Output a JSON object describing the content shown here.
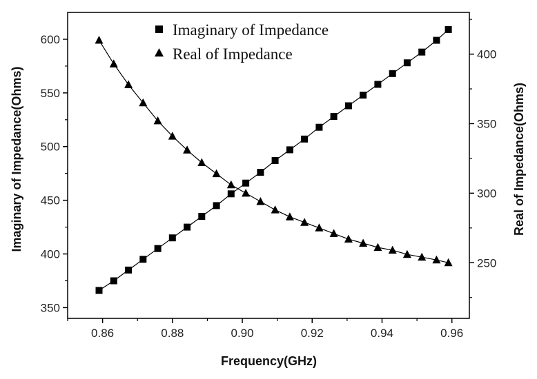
{
  "chart_data": {
    "type": "line",
    "title": "",
    "xlabel": "Frequency(GHz)",
    "ylabel_left": "Imaginary of Impedance(Ohms)",
    "ylabel_right": "Real of Impedance(Ohms)",
    "xlim": [
      0.85,
      0.965
    ],
    "ylim_left": [
      340,
      625
    ],
    "ylim_right": [
      210,
      430
    ],
    "xticks": [
      0.86,
      0.88,
      0.9,
      0.92,
      0.94,
      0.96
    ],
    "xtick_labels": [
      "0.86",
      "0.88",
      "0.90",
      "0.92",
      "0.94",
      "0.96"
    ],
    "yticks_left": [
      350,
      400,
      450,
      500,
      550,
      600
    ],
    "yticks_left_labels": [
      "350",
      "400",
      "450",
      "500",
      "550",
      "600"
    ],
    "yticks_right": [
      250,
      300,
      350,
      400
    ],
    "yticks_right_labels": [
      "250",
      "300",
      "350",
      "400"
    ],
    "grid": false,
    "legend_position": "top-center",
    "x": [
      0.859,
      0.8632,
      0.8674,
      0.8716,
      0.8758,
      0.88,
      0.8842,
      0.8884,
      0.8926,
      0.8968,
      0.901,
      0.9052,
      0.9094,
      0.9136,
      0.9178,
      0.922,
      0.9262,
      0.9304,
      0.9346,
      0.9388,
      0.943,
      0.9472,
      0.9514,
      0.9556,
      0.959
    ],
    "series": [
      {
        "name": "Imaginary of Impedance",
        "axis": "left",
        "marker": "square",
        "color": "#000000",
        "values": [
          366,
          375,
          385,
          395,
          405,
          415,
          425,
          435,
          445,
          456,
          466,
          476,
          487,
          497,
          507,
          518,
          528,
          538,
          548,
          558,
          568,
          578,
          588,
          599,
          609
        ]
      },
      {
        "name": "Real of Impedance",
        "axis": "right",
        "marker": "triangle",
        "color": "#000000",
        "values": [
          410,
          393,
          378,
          365,
          352,
          341,
          331,
          322,
          314,
          306,
          300,
          294,
          288,
          283,
          279,
          275,
          271,
          267,
          264,
          261,
          259,
          256,
          254,
          252,
          250
        ]
      }
    ]
  }
}
